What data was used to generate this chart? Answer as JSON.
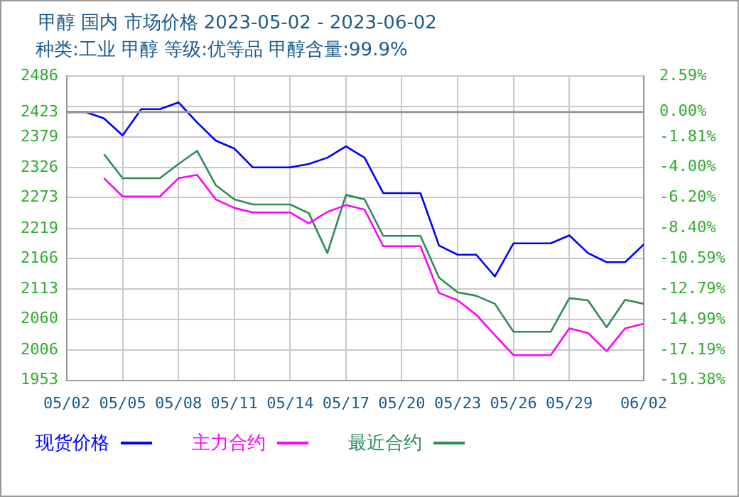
{
  "chart_data": {
    "type": "line",
    "title": "甲醇 国内 市场价格 2023-05-02 - 2023-06-02",
    "subtitle": "种类:工业 甲醇 等级:优等品 甲醇含量:99.9%",
    "x": [
      "2023-05-02",
      "2023-05-03",
      "2023-05-04",
      "2023-05-05",
      "2023-05-06",
      "2023-05-07",
      "2023-05-08",
      "2023-05-09",
      "2023-05-10",
      "2023-05-11",
      "2023-05-12",
      "2023-05-13",
      "2023-05-14",
      "2023-05-15",
      "2023-05-16",
      "2023-05-17",
      "2023-05-18",
      "2023-05-19",
      "2023-05-20",
      "2023-05-21",
      "2023-05-22",
      "2023-05-23",
      "2023-05-24",
      "2023-05-25",
      "2023-05-26",
      "2023-05-27",
      "2023-05-28",
      "2023-05-29",
      "2023-05-30",
      "2023-05-31",
      "2023-06-01",
      "2023-06-02"
    ],
    "series": [
      {
        "name": "现货价格",
        "color": "#0000ff",
        "values": [
          2423,
          2423,
          2412,
          2382,
          2428,
          2428,
          2440,
          2405,
          2373,
          2359,
          2326,
          2326,
          2326,
          2332,
          2343,
          2363,
          2343,
          2281,
          2281,
          2281,
          2189,
          2173,
          2173,
          2135,
          2193,
          2193,
          2193,
          2207,
          2176,
          2160,
          2160,
          2191
        ]
      },
      {
        "name": "主力合约",
        "color": "#ff00ff",
        "values": [
          null,
          null,
          2307,
          2275,
          2275,
          2275,
          2307,
          2313,
          2270,
          2255,
          2247,
          2247,
          2247,
          2228,
          2248,
          2260,
          2252,
          2188,
          2188,
          2188,
          2106,
          2093,
          2068,
          2032,
          1997,
          1997,
          1997,
          2044,
          2036,
          2004,
          2044,
          2052
        ]
      },
      {
        "name": "最近合约",
        "color": "#2e8b57",
        "values": [
          null,
          null,
          2349,
          2307,
          2307,
          2307,
          2332,
          2355,
          2295,
          2270,
          2261,
          2261,
          2261,
          2246,
          2176,
          2278,
          2270,
          2206,
          2206,
          2206,
          2133,
          2107,
          2101,
          2087,
          2038,
          2038,
          2038,
          2097,
          2093,
          2046,
          2094,
          2087
        ]
      }
    ],
    "xlim": [
      "2023-05-02",
      "2023-06-02"
    ],
    "xticks": [
      {
        "value": "2023-05-02",
        "label": "05/02"
      },
      {
        "value": "2023-05-05",
        "label": "05/05"
      },
      {
        "value": "2023-05-08",
        "label": "05/08"
      },
      {
        "value": "2023-05-11",
        "label": "05/11"
      },
      {
        "value": "2023-05-14",
        "label": "05/14"
      },
      {
        "value": "2023-05-17",
        "label": "05/17"
      },
      {
        "value": "2023-05-20",
        "label": "05/20"
      },
      {
        "value": "2023-05-23",
        "label": "05/23"
      },
      {
        "value": "2023-05-26",
        "label": "05/26"
      },
      {
        "value": "2023-05-29",
        "label": "05/29"
      },
      {
        "value": "2023-06-02",
        "label": "06/02"
      }
    ],
    "ylim": [
      1953,
      2486
    ],
    "yticks": [
      1953,
      2006,
      2060,
      2113,
      2166,
      2219,
      2273,
      2326,
      2379,
      2423,
      {
        "value": 2433,
        "label": null
      },
      2486
    ],
    "y2lim": [
      -19.38,
      2.59
    ],
    "y2ticks": [
      {
        "value": -19.38,
        "label": "-19.38%"
      },
      {
        "value": -17.19,
        "label": "-17.19%"
      },
      {
        "value": -14.99,
        "label": "-14.99%"
      },
      {
        "value": -12.79,
        "label": "-12.79%"
      },
      {
        "value": -10.59,
        "label": "-10.59%"
      },
      {
        "value": -8.4,
        "label": "-8.40%"
      },
      {
        "value": -6.2,
        "label": "-6.20%"
      },
      {
        "value": -4.0,
        "label": "-4.00%"
      },
      {
        "value": -1.81,
        "label": "-1.81%"
      },
      {
        "value": 0,
        "label": "0.00%"
      },
      {
        "value": 2.59,
        "label": "2.59%"
      }
    ],
    "ref_lines": [
      {
        "axis": "y",
        "value": 2423,
        "color": "#999999"
      }
    ],
    "grid": true,
    "legend": "bottom",
    "marker": "none",
    "line_style": "solid"
  }
}
